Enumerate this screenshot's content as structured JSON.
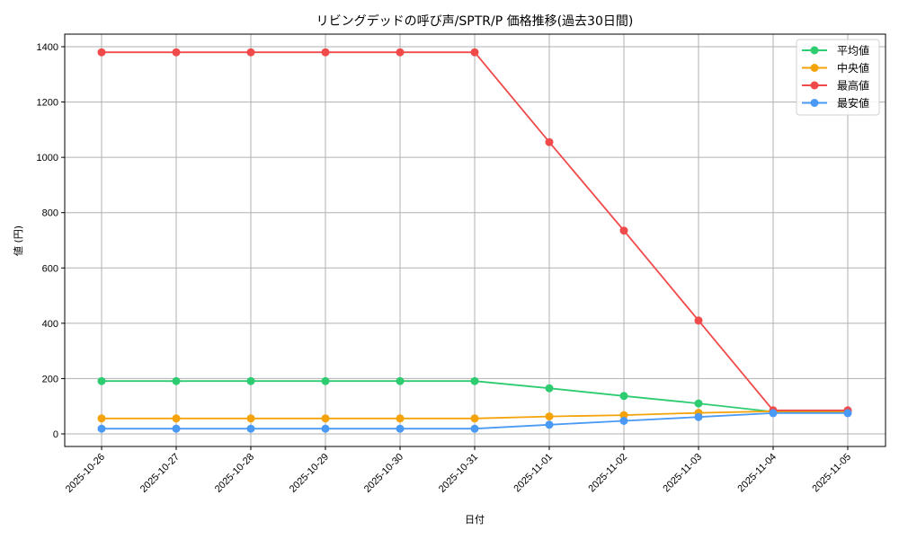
{
  "chart_data": {
    "type": "line",
    "title": "リビングデッドの呼び声/SPTR/P 価格推移(過去30日間)",
    "xlabel": "日付",
    "ylabel": "値 (円)",
    "ylim": [
      -50,
      1450
    ],
    "yticks": [
      0,
      200,
      400,
      600,
      800,
      1000,
      1200,
      1400
    ],
    "grid": true,
    "legend_position": "upper right",
    "categories": [
      "2025-10-26",
      "2025-10-27",
      "2025-10-28",
      "2025-10-29",
      "2025-10-30",
      "2025-10-31",
      "2025-11-01",
      "2025-11-02",
      "2025-11-03",
      "2025-11-04",
      "2025-11-05"
    ],
    "series": [
      {
        "name": "平均値",
        "color": "#2ecc71",
        "values": [
          191,
          191,
          191,
          191,
          191,
          191,
          165,
          137,
          110,
          80,
          80
        ]
      },
      {
        "name": "中央値",
        "color": "#f5a30a",
        "values": [
          56,
          56,
          56,
          56,
          56,
          56,
          63,
          68,
          76,
          82,
          82
        ]
      },
      {
        "name": "最高値",
        "color": "#f04a4a",
        "values": [
          1380,
          1380,
          1380,
          1380,
          1380,
          1380,
          1055,
          735,
          410,
          85,
          85
        ]
      },
      {
        "name": "最安値",
        "color": "#4a9af5",
        "values": [
          19,
          19,
          19,
          19,
          19,
          19,
          33,
          47,
          61,
          75,
          75
        ]
      }
    ]
  }
}
